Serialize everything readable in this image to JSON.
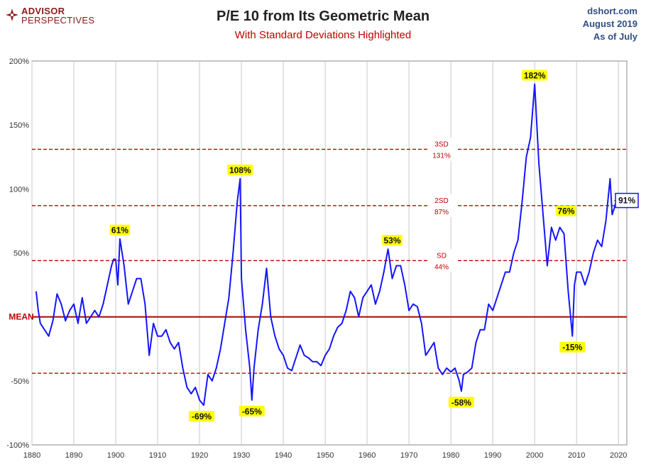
{
  "header": {
    "logo_line1": "ADVISOR",
    "logo_line2": "PERSPECTIVES",
    "title": "P/E 10 from Its Geometric Mean",
    "subtitle": "With Standard Deviations Highlighted",
    "source": "dshort.com",
    "date": "August 2019",
    "as_of": "As of July"
  },
  "colors": {
    "line": "#1515ff",
    "sd": "#c00000",
    "mean": "#b00000",
    "highlight": "#ffff00",
    "source_text": "#2f4e87"
  },
  "chart_data": {
    "type": "line",
    "title": "P/E 10 from Its Geometric Mean",
    "subtitle": "With Standard Deviations Highlighted",
    "xlim": [
      1880,
      2022
    ],
    "ylim": [
      -100,
      200
    ],
    "xticks": [
      1880,
      1890,
      1900,
      1910,
      1920,
      1930,
      1940,
      1950,
      1960,
      1970,
      1980,
      1990,
      2000,
      2010,
      2020
    ],
    "yticks": [
      -100,
      -50,
      0,
      50,
      100,
      150,
      200
    ],
    "ytick_labels": [
      "-100%",
      "-50%",
      "",
      "50%",
      "100%",
      "150%",
      "200%"
    ],
    "mean_label": "MEAN",
    "reference_lines": [
      {
        "value": 131,
        "label_top": "3SD",
        "label_bottom": "131%"
      },
      {
        "value": 87,
        "label_top": "2SD",
        "label_bottom": "87%"
      },
      {
        "value": 44,
        "label_top": "SD",
        "label_bottom": "44%"
      },
      {
        "value": -44,
        "label_top": "",
        "label_bottom": ""
      }
    ],
    "annotations": [
      {
        "text": "61%",
        "x": 1901.0,
        "y": 61
      },
      {
        "text": "108%",
        "x": 1929.7,
        "y": 108
      },
      {
        "text": "53%",
        "x": 1966.0,
        "y": 53
      },
      {
        "text": "182%",
        "x": 2000.0,
        "y": 182
      },
      {
        "text": "76%",
        "x": 2007.5,
        "y": 76
      },
      {
        "text": "-69%",
        "x": 1920.5,
        "y": -69
      },
      {
        "text": "-65%",
        "x": 1932.5,
        "y": -65
      },
      {
        "text": "-58%",
        "x": 1982.5,
        "y": -58
      },
      {
        "text": "-15%",
        "x": 2009.0,
        "y": -15
      },
      {
        "text": "91%",
        "x": 2019.5,
        "y": 91
      }
    ],
    "series": [
      {
        "x": [
          1881,
          1881.5,
          1882,
          1883,
          1884,
          1885,
          1886,
          1887,
          1888,
          1889,
          1890,
          1891,
          1892,
          1893,
          1894,
          1895,
          1896,
          1897,
          1898,
          1899,
          1899.5,
          1900,
          1900.5,
          1901,
          1902,
          1903,
          1904,
          1905,
          1906,
          1907,
          1908,
          1909,
          1910,
          1911,
          1912,
          1913,
          1914,
          1915,
          1916,
          1917,
          1918,
          1919,
          1920,
          1921,
          1922,
          1923,
          1924,
          1925,
          1926,
          1927,
          1928,
          1929,
          1929.7,
          1930,
          1931,
          1932,
          1932.5,
          1933,
          1934,
          1935,
          1936,
          1937,
          1938,
          1939,
          1940,
          1941,
          1942,
          1943,
          1944,
          1945,
          1946,
          1947,
          1948,
          1949,
          1950,
          1951,
          1952,
          1953,
          1954,
          1955,
          1956,
          1957,
          1958,
          1959,
          1960,
          1961,
          1962,
          1963,
          1964,
          1965,
          1966,
          1967,
          1968,
          1969,
          1970,
          1971,
          1972,
          1973,
          1974,
          1975,
          1976,
          1977,
          1978,
          1979,
          1980,
          1981,
          1982,
          1982.5,
          1983,
          1984,
          1985,
          1986,
          1987,
          1988,
          1989,
          1990,
          1991,
          1992,
          1993,
          1994,
          1995,
          1996,
          1997,
          1998,
          1999,
          2000,
          2001,
          2002,
          2003,
          2004,
          2005,
          2006,
          2007,
          2008,
          2009,
          2009.5,
          2010,
          2011,
          2012,
          2013,
          2014,
          2015,
          2016,
          2017,
          2018,
          2018.5,
          2019,
          2019.5
        ],
        "y": [
          20,
          5,
          -5,
          -10,
          -15,
          -3,
          18,
          10,
          -3,
          5,
          10,
          -5,
          15,
          -5,
          0,
          5,
          0,
          10,
          25,
          40,
          45,
          45,
          25,
          61,
          40,
          10,
          20,
          30,
          30,
          10,
          -30,
          -5,
          -15,
          -15,
          -10,
          -20,
          -25,
          -20,
          -40,
          -55,
          -60,
          -55,
          -65,
          -69,
          -45,
          -50,
          -40,
          -25,
          -5,
          15,
          50,
          90,
          108,
          30,
          -10,
          -40,
          -65,
          -40,
          -10,
          10,
          38,
          0,
          -15,
          -25,
          -30,
          -40,
          -42,
          -32,
          -22,
          -30,
          -32,
          -35,
          -35,
          -38,
          -30,
          -25,
          -15,
          -8,
          -5,
          5,
          20,
          15,
          0,
          15,
          20,
          25,
          10,
          20,
          35,
          53,
          30,
          40,
          40,
          25,
          5,
          10,
          8,
          -5,
          -30,
          -25,
          -20,
          -40,
          -45,
          -40,
          -43,
          -40,
          -50,
          -58,
          -45,
          -43,
          -40,
          -20,
          -10,
          -10,
          10,
          5,
          15,
          25,
          35,
          35,
          50,
          60,
          90,
          125,
          140,
          182,
          120,
          80,
          40,
          70,
          60,
          70,
          65,
          20,
          -15,
          25,
          35,
          35,
          25,
          35,
          50,
          60,
          55,
          75,
          108,
          80,
          85,
          91
        ]
      }
    ]
  }
}
